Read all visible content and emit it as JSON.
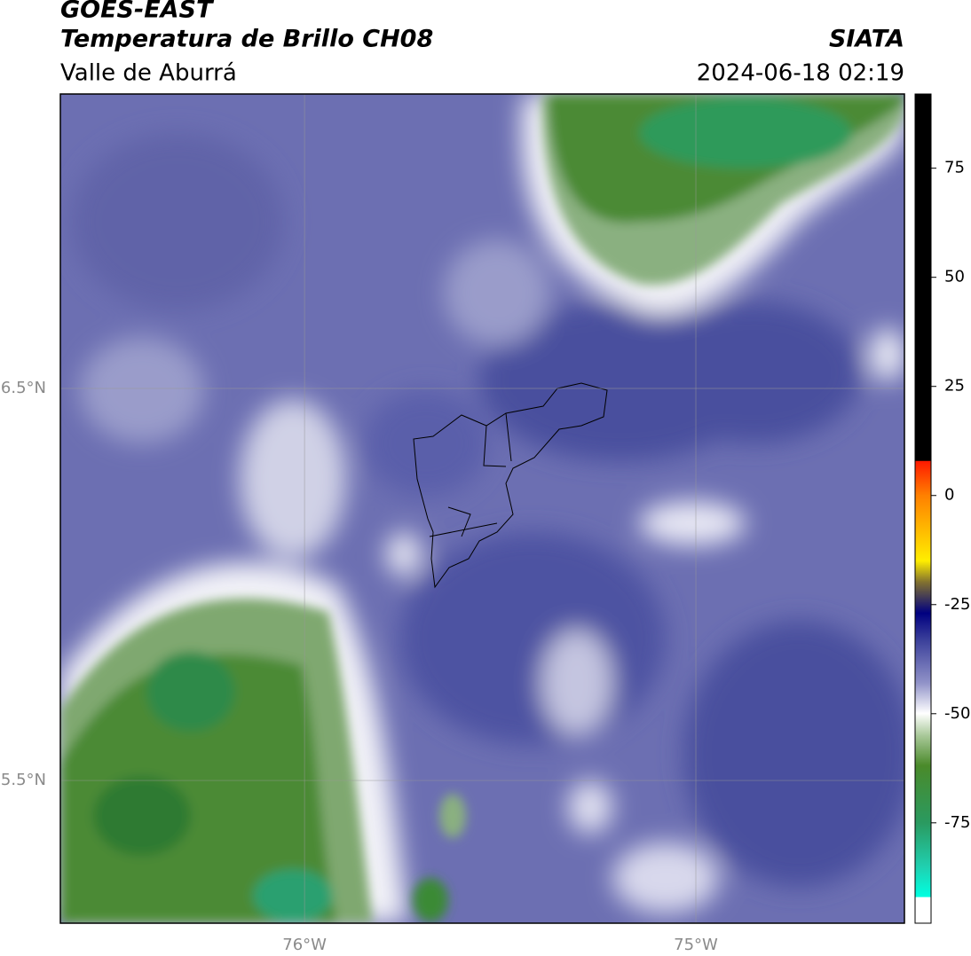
{
  "header": {
    "title": "GOES-EAST",
    "subtitle": "Temperatura de Brillo CH08",
    "region": "Valle de Aburrá",
    "source": "SIATA",
    "datetime": "2024-06-18 02:19"
  },
  "map": {
    "xlim": [
      -76.624,
      -74.467
    ],
    "ylim": [
      5.136,
      7.251
    ],
    "xticks": [
      {
        "value": -76,
        "label": "76°W"
      },
      {
        "value": -75,
        "label": "75°W"
      }
    ],
    "yticks": [
      {
        "value": 5.5,
        "label": "5.5°N"
      },
      {
        "value": 6.5,
        "label": "6.5°N"
      }
    ],
    "grid": true
  },
  "colorbar": {
    "lim": [
      -98,
      92
    ],
    "ticks": [
      75,
      50,
      25,
      0,
      -25,
      -50,
      -75
    ]
  }
}
